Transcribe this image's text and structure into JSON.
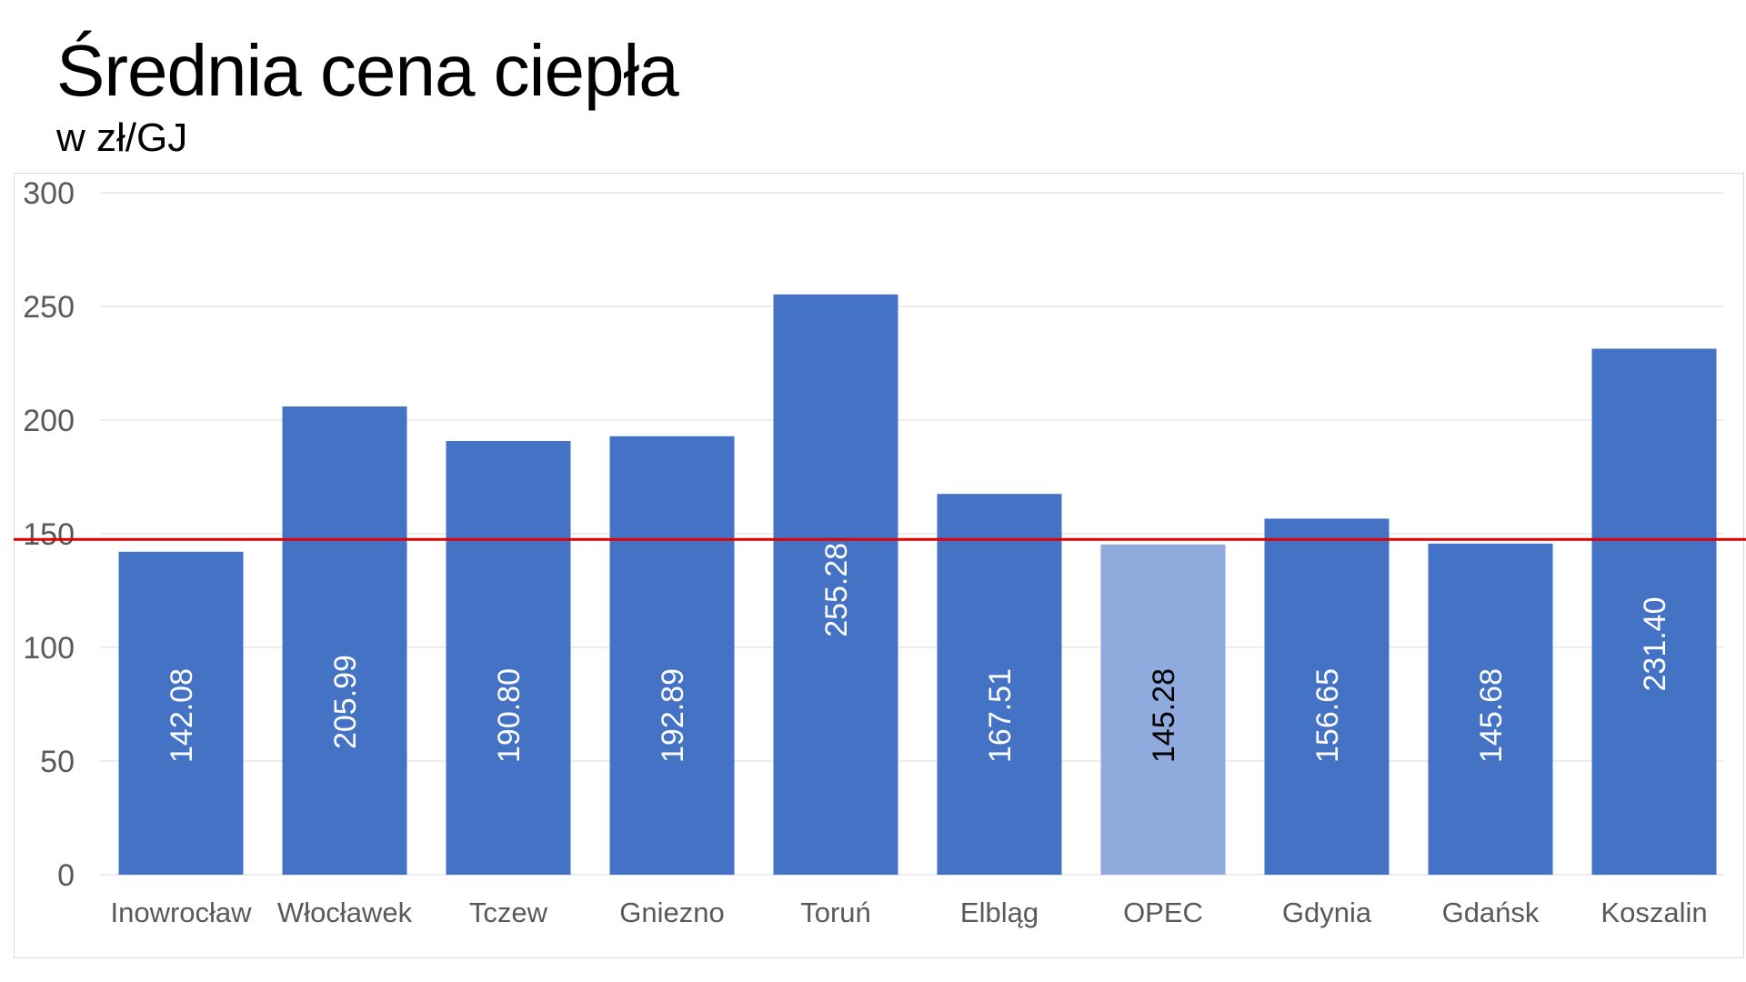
{
  "chart_data": {
    "type": "bar",
    "title": "Średnia cena ciepła",
    "subtitle": "w zł/GJ",
    "xlabel": "",
    "ylabel": "",
    "categories": [
      "Inowrocław",
      "Włocławek",
      "Tczew",
      "Gniezno",
      "Toruń",
      "Elbląg",
      "OPEC",
      "Gdynia",
      "Gdańsk",
      "Koszalin"
    ],
    "values": [
      142.08,
      205.99,
      190.8,
      192.89,
      255.28,
      167.51,
      145.28,
      156.65,
      145.68,
      231.4
    ],
    "value_labels": [
      "142.08",
      "205.99",
      "190.80",
      "192.89",
      "255.28",
      "167.51",
      "145.28",
      "156.65",
      "145.68",
      "231.40"
    ],
    "ylim": [
      0,
      300
    ],
    "yticks": [
      0,
      50,
      100,
      150,
      200,
      250,
      300
    ],
    "reference_line": 147.5,
    "highlight_category": "OPEC",
    "grid": true,
    "legend": "none",
    "colors": {
      "bar": "#4472c4",
      "highlight_bar": "#8faadc",
      "reference_line": "#e00000",
      "label_on_bar": "#ffffff",
      "label_on_highlight": "#000000",
      "axis_text": "#595959",
      "grid": "#e6e6e6"
    }
  }
}
